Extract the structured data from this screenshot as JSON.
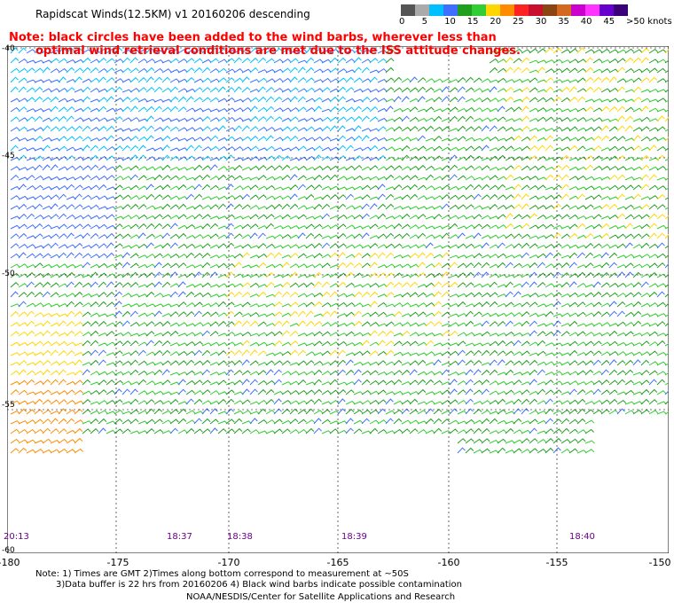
{
  "title": "Rapidscat Winds(12.5KM) v1 20160206 descending",
  "note_line1": "Note: black circles have been added to the wind barbs, wherever less than",
  "note_line2": "optimal wind retrieval conditions are met due to the ISS attitude changes.",
  "colorbar": {
    "labels": [
      "0",
      "5",
      "10",
      "15",
      "20",
      "25",
      "30",
      "35",
      "40",
      "45",
      ">50 knots"
    ],
    "colors": [
      "#555555",
      "#aaaaaa",
      "#00bfff",
      "#3f6fff",
      "#1e9f1e",
      "#32cd32",
      "#ffd700",
      "#ff8c00",
      "#ff2222",
      "#c8102e",
      "#8b4513",
      "#d2691e",
      "#cc00cc",
      "#ff33ff",
      "#6600cc",
      "#3a007a"
    ]
  },
  "y_labels": [
    "-40",
    "-45",
    "-50",
    "-55",
    "-60"
  ],
  "x_labels": [
    "-180",
    "-175",
    "-170",
    "-165",
    "-160",
    "-155",
    "-150"
  ],
  "times": [
    "20:13",
    "18:37",
    "18:38",
    "18:39",
    "18:40"
  ],
  "footer_line1": "Note: 1) Times are GMT 2)Times along bottom correspond to measurement at ~50S",
  "footer_line2": "3)Data buffer is 22 hrs from 20160206 4) Black wind barbs indicate possible contamination",
  "footer_line3": "NOAA/NESDIS/Center for Satellite Applications and Research"
}
